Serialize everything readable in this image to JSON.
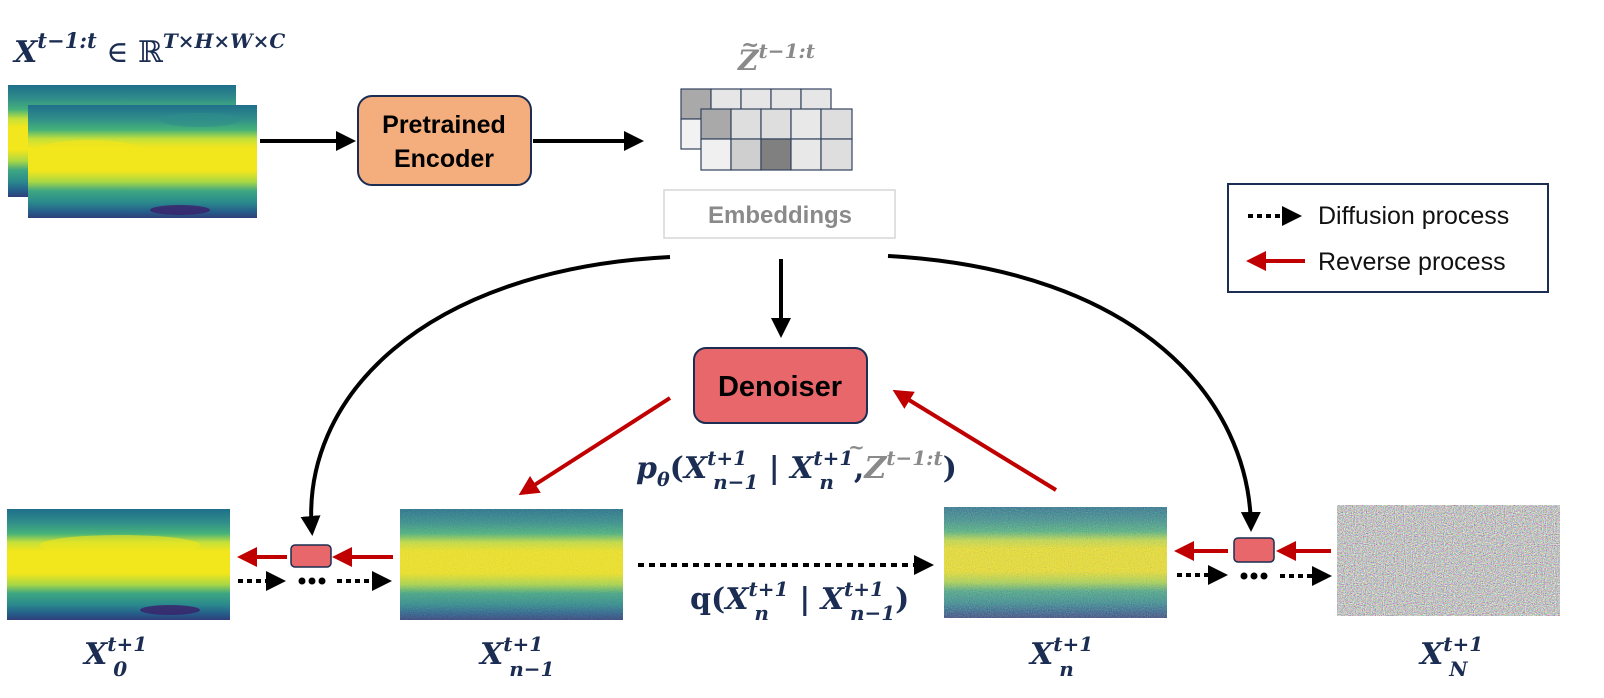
{
  "input_label": {
    "base": "X",
    "sup": "t−1:t",
    "tail": " ∈ ℝ",
    "tail_sup": "T×H×W×C"
  },
  "encoder_label": {
    "line1": "Pretrained",
    "line2": "Encoder"
  },
  "embedding_label": {
    "base": "Z",
    "tilde": "~",
    "sup": "t−1:t"
  },
  "embeddings_box_label": "Embeddings",
  "denoiser_label": "Denoiser",
  "legend": {
    "diffusion": "Diffusion process",
    "reverse": "Reverse process"
  },
  "reverse_formula": {
    "p": "p",
    "theta": "θ",
    "open": "(",
    "x1": "X",
    "x1_sup": "t+1",
    "x1_sub": "n−1",
    "bar": " | ",
    "x2": "X",
    "x2_sup": "t+1",
    "x2_sub": "n",
    "comma": ",",
    "z": "Z",
    "z_sup": "t−1:t",
    "close": ")"
  },
  "forward_formula": {
    "q": "q",
    "open": "(",
    "x1": "X",
    "x1_sup": "t+1",
    "x1_sub": "n",
    "bar": " | ",
    "x2": "X",
    "x2_sup": "t+1",
    "x2_sub": "n−1",
    "close": ")"
  },
  "state_labels": [
    {
      "base": "X",
      "sup": "t+1",
      "sub": "0"
    },
    {
      "base": "X",
      "sup": "t+1",
      "sub": "n−1"
    },
    {
      "base": "X",
      "sup": "t+1",
      "sub": "n"
    },
    {
      "base": "X",
      "sup": "t+1",
      "sub": "N"
    }
  ],
  "colors": {
    "encoder_fill": "#f4ae7e",
    "denoiser_fill": "#e8676b",
    "small_block_fill": "#e8676b",
    "reverse_arrow": "#c00000",
    "embedding_gray": "#8a8a8a",
    "math_navy": "#1b2d52",
    "field_yellow": "#f2e61c",
    "field_teal": "#2a8a8c"
  }
}
